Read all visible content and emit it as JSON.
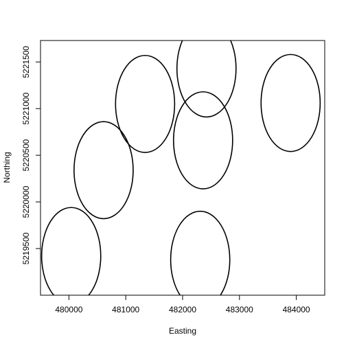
{
  "chart_data": {
    "type": "scatter",
    "title": "",
    "xlabel": "Easting",
    "ylabel": "Northing",
    "xlim": [
      479500,
      484500
    ],
    "ylim": [
      5219000,
      5221730
    ],
    "x_ticks": [
      480000,
      481000,
      482000,
      483000,
      484000
    ],
    "y_ticks": [
      5219500,
      5220000,
      5220500,
      5221000,
      5221500
    ],
    "x_tick_labels": [
      "480000",
      "481000",
      "482000",
      "483000",
      "484000"
    ],
    "y_tick_labels": [
      "5219500",
      "5220000",
      "5220500",
      "5221000",
      "5221500"
    ],
    "grid": false,
    "legend": "none",
    "circle_radius": 520,
    "circles": [
      {
        "x": 480040,
        "y": 5219420
      },
      {
        "x": 480610,
        "y": 5220340
      },
      {
        "x": 481340,
        "y": 5221050
      },
      {
        "x": 482420,
        "y": 5221430
      },
      {
        "x": 482360,
        "y": 5220660
      },
      {
        "x": 483900,
        "y": 5221060
      },
      {
        "x": 482310,
        "y": 5219380
      }
    ]
  }
}
